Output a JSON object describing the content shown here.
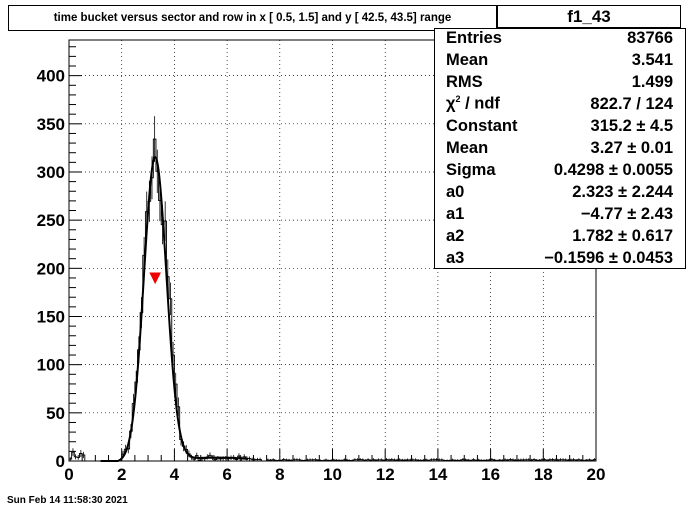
{
  "chart_data": {
    "type": "histogram",
    "title": "time bucket versus sector and row in x [  0.5,  1.5] and y [ 42.5, 43.5] range",
    "xlabel": "",
    "ylabel": "",
    "xlim": [
      0,
      20
    ],
    "ylim": [
      0,
      437
    ],
    "grid": true,
    "x_ticks": [
      "0",
      "2",
      "4",
      "6",
      "8",
      "10",
      "12",
      "14",
      "16",
      "18",
      "20"
    ],
    "y_ticks": [
      "0",
      "50",
      "100",
      "150",
      "200",
      "250",
      "300",
      "350",
      "400"
    ],
    "bins": {
      "x_min": 0,
      "x_max": 20,
      "count": 200
    },
    "fit": {
      "function": "gaus+pol3",
      "constant": 315.2,
      "mean": 3.27,
      "sigma": 0.4298,
      "a0": 2.323,
      "a1": -4.77,
      "a2": 1.782,
      "a3": -0.1596
    },
    "marker": {
      "shape": "down-triangle",
      "x": 3.27,
      "y": 190,
      "color": "#ee0000"
    }
  },
  "header": {
    "hist_name": "f1_43"
  },
  "stats": [
    {
      "label": "Entries",
      "value": "83766"
    },
    {
      "label": "Mean",
      "value": "3.541"
    },
    {
      "label": "RMS",
      "value": "1.499"
    },
    {
      "label_greek": "χ",
      "label_sup": "2",
      "label_rest": " / ndf",
      "value": "822.7 / 124"
    },
    {
      "label": "Constant",
      "value": "315.2 ± 4.5"
    },
    {
      "label": "Mean",
      "value": "3.27 ± 0.01"
    },
    {
      "label": "Sigma",
      "value": "0.4298 ± 0.0055"
    },
    {
      "label": "a0",
      "value": "2.323 ± 2.244"
    },
    {
      "label": "a1",
      "value": "−4.77 ± 2.43"
    },
    {
      "label": "a2",
      "value": "1.782 ± 0.617"
    },
    {
      "label": "a3",
      "value": "−0.1596 ± 0.0453"
    }
  ],
  "footer": {
    "timestamp": "Sun Feb 14 11:58:30 2021"
  }
}
